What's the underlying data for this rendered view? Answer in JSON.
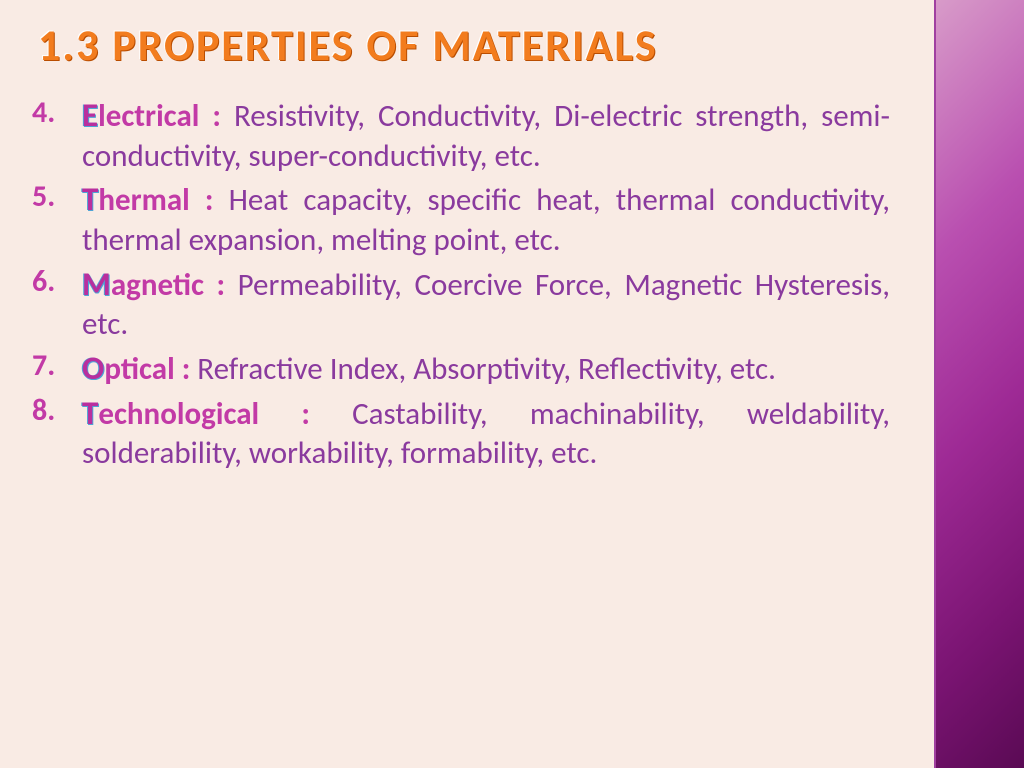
{
  "colors": {
    "background": "#f9ebe4",
    "title_color": "#f27c1e",
    "title_shadow": "#b94d00",
    "bullet_number_color": "#c23aa6",
    "term_color": "#c23aa6",
    "term_cap_highlight": "#4fa3d6",
    "body_text_color": "#8a3a9e",
    "sidebar_gradient_start": "#d89bc9",
    "sidebar_gradient_end": "#5a0a54"
  },
  "typography": {
    "title_fontsize_pt": 33,
    "body_fontsize_pt": 23,
    "font_family": "Calibri"
  },
  "title": "1.3 PROPERTIES OF MATERIALS",
  "start_number": 4,
  "items": [
    {
      "number": "4.",
      "cap": "E",
      "rest": "lectrical",
      "body": "Resistivity, Conductivity, Di-electric strength, semi-conductivity, super-conductivity, etc."
    },
    {
      "number": "5.",
      "cap": "T",
      "rest": "hermal",
      "body": "Heat capacity, specific heat, thermal conductivity, thermal expansion, melting point, etc."
    },
    {
      "number": "6.",
      "cap": "M",
      "rest": "agnetic",
      "body": "Permeability, Coercive Force, Magnetic Hysteresis, etc."
    },
    {
      "number": "7.",
      "cap": "O",
      "rest": "ptical",
      "body": "Refractive Index, Absorptivity, Reflectivity, etc."
    },
    {
      "number": "8.",
      "cap": "T",
      "rest": "echnological",
      "body": "Castability, machinability, weldability, solderability, workability, formability, etc."
    }
  ]
}
